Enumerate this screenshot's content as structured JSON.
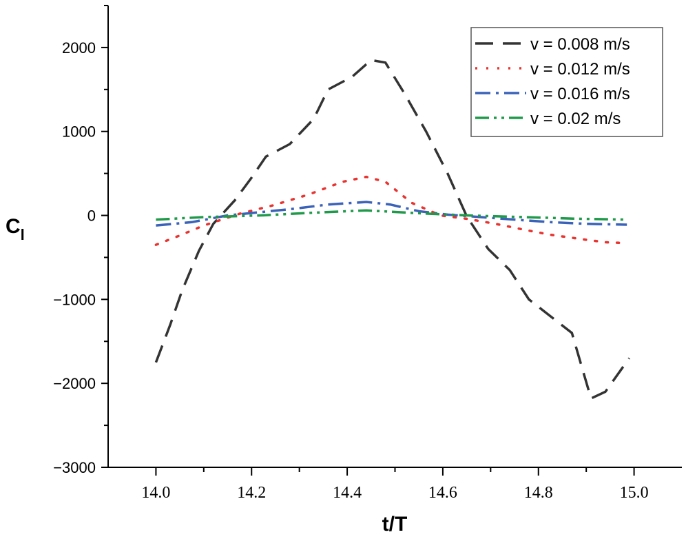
{
  "chart_data": {
    "type": "line",
    "title": "",
    "xlabel": "t/T",
    "ylabel": "C",
    "ylabel_subscript": "l",
    "xlim": [
      13.9,
      15.1
    ],
    "ylim": [
      -3000,
      2500
    ],
    "xticks": [
      14.0,
      14.2,
      14.4,
      14.6,
      14.8,
      15.0
    ],
    "xtick_labels": [
      "14.0",
      "14.2",
      "14.4",
      "14.6",
      "14.8",
      "15.0"
    ],
    "yticks": [
      -3000,
      -2000,
      -1000,
      0,
      1000,
      2000
    ],
    "ytick_labels": [
      "−3000",
      "−2000",
      "−1000",
      "0",
      "1000",
      "2000"
    ],
    "grid": false,
    "legend_position": "top-right",
    "series": [
      {
        "name": "v = 0.008 m/s",
        "color": "#333333",
        "style": "dash",
        "x": [
          14.0,
          14.03,
          14.055,
          14.09,
          14.12,
          14.165,
          14.2,
          14.23,
          14.28,
          14.33,
          14.36,
          14.41,
          14.45,
          14.48,
          14.52,
          14.565,
          14.61,
          14.65,
          14.695,
          14.74,
          14.78,
          14.825,
          14.87,
          14.91,
          14.94,
          14.99
        ],
        "y": [
          -1750,
          -1300,
          -890,
          -420,
          -100,
          180,
          450,
          700,
          850,
          1150,
          1500,
          1650,
          1850,
          1820,
          1450,
          1000,
          500,
          -10,
          -400,
          -650,
          -1000,
          -1200,
          -1400,
          -2180,
          -2100,
          -1700
        ]
      },
      {
        "name": "v = 0.012 m/s",
        "color": "#e8332f",
        "style": "dot",
        "x": [
          14.0,
          14.045,
          14.1,
          14.175,
          14.245,
          14.32,
          14.39,
          14.44,
          14.48,
          14.535,
          14.595,
          14.65,
          14.71,
          14.77,
          14.825,
          14.9,
          14.94,
          14.985
        ],
        "y": [
          -350,
          -250,
          -120,
          20,
          120,
          250,
          400,
          460,
          400,
          150,
          0,
          -40,
          -100,
          -170,
          -230,
          -290,
          -320,
          -330
        ]
      },
      {
        "name": "v = 0.016 m/s",
        "color": "#3a62b8",
        "style": "dashdot",
        "x": [
          14.0,
          14.075,
          14.15,
          14.22,
          14.29,
          14.36,
          14.44,
          14.49,
          14.55,
          14.61,
          14.68,
          14.75,
          14.825,
          14.9,
          14.985
        ],
        "y": [
          -120,
          -80,
          0,
          40,
          80,
          130,
          160,
          130,
          50,
          10,
          -20,
          -50,
          -80,
          -100,
          -110
        ]
      },
      {
        "name": "v = 0.02 m/s",
        "color": "#1f9a4a",
        "style": "dashdotdot",
        "x": [
          14.0,
          14.1,
          14.22,
          14.32,
          14.44,
          14.535,
          14.65,
          14.77,
          14.885,
          14.985
        ],
        "y": [
          -50,
          -20,
          0,
          30,
          60,
          30,
          0,
          -20,
          -40,
          -50
        ]
      }
    ]
  }
}
